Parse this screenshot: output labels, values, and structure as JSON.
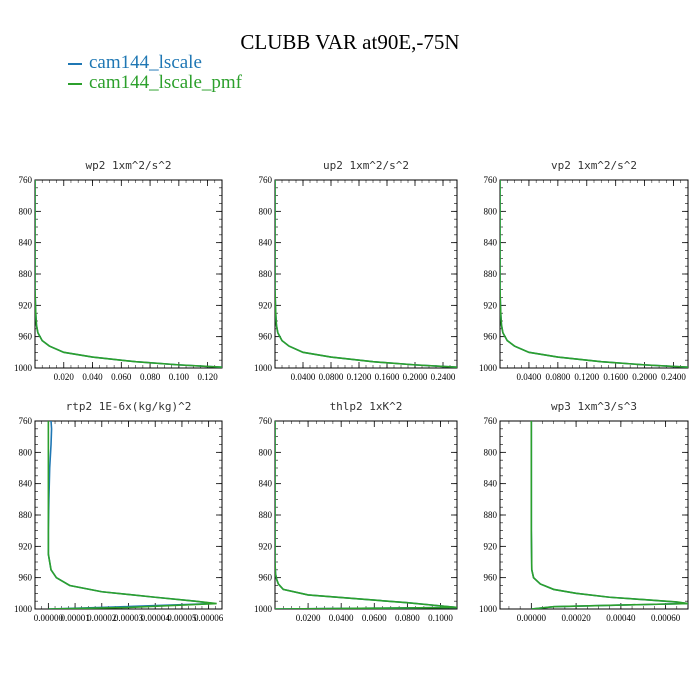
{
  "figure": {
    "title": "CLUBB VAR at90E,-75N"
  },
  "legend": [
    {
      "label": "cam144_lscale",
      "color": "#1f77b4"
    },
    {
      "label": "cam144_lscale_pmf",
      "color": "#2ca02c"
    }
  ],
  "chart_data": [
    {
      "type": "line",
      "title": "wp2  1xm^2/s^2",
      "xlim": [
        0,
        0.13
      ],
      "ylim": [
        760,
        1000
      ],
      "y_inverted": true,
      "xticks": [
        "0.020",
        "0.040",
        "0.060",
        "0.080",
        "0.100",
        "0.120"
      ],
      "xtick_values": [
        0.02,
        0.04,
        0.06,
        0.08,
        0.1,
        0.12
      ],
      "yticks": [
        760,
        800,
        840,
        880,
        920,
        960,
        1000
      ],
      "series": [
        {
          "name": "cam144_lscale",
          "x": [
            0.0,
            0.0,
            0.0005,
            0.001,
            0.002,
            0.005,
            0.01,
            0.02,
            0.04,
            0.07,
            0.1,
            0.13
          ],
          "y": [
            760,
            900,
            930,
            945,
            955,
            965,
            972,
            980,
            986,
            992,
            996,
            999
          ]
        },
        {
          "name": "cam144_lscale_pmf",
          "x": [
            0.0,
            0.0,
            0.0005,
            0.001,
            0.002,
            0.005,
            0.01,
            0.02,
            0.04,
            0.07,
            0.1,
            0.13
          ],
          "y": [
            760,
            900,
            930,
            945,
            955,
            965,
            972,
            980,
            986,
            992,
            996,
            999
          ]
        }
      ]
    },
    {
      "type": "line",
      "title": "up2  1xm^2/s^2",
      "xlim": [
        0,
        0.26
      ],
      "ylim": [
        760,
        1000
      ],
      "y_inverted": true,
      "xticks": [
        "0.0400",
        "0.0800",
        "0.1200",
        "0.1600",
        "0.2000",
        "0.2400"
      ],
      "xtick_values": [
        0.04,
        0.08,
        0.12,
        0.16,
        0.2,
        0.24
      ],
      "yticks": [
        760,
        800,
        840,
        880,
        920,
        960,
        1000
      ],
      "series": [
        {
          "name": "cam144_lscale",
          "x": [
            0.0,
            0.0,
            0.001,
            0.002,
            0.004,
            0.01,
            0.02,
            0.04,
            0.08,
            0.14,
            0.2,
            0.26
          ],
          "y": [
            760,
            900,
            930,
            945,
            955,
            965,
            972,
            980,
            986,
            992,
            996,
            999
          ]
        },
        {
          "name": "cam144_lscale_pmf",
          "x": [
            0.0,
            0.0,
            0.001,
            0.002,
            0.004,
            0.01,
            0.02,
            0.04,
            0.08,
            0.14,
            0.2,
            0.26
          ],
          "y": [
            760,
            900,
            930,
            945,
            955,
            965,
            972,
            980,
            986,
            992,
            996,
            999
          ]
        }
      ]
    },
    {
      "type": "line",
      "title": "vp2  1xm^2/s^2",
      "xlim": [
        0,
        0.26
      ],
      "ylim": [
        760,
        1000
      ],
      "y_inverted": true,
      "xticks": [
        "0.0400",
        "0.0800",
        "0.1200",
        "0.1600",
        "0.2000",
        "0.2400"
      ],
      "xtick_values": [
        0.04,
        0.08,
        0.12,
        0.16,
        0.2,
        0.24
      ],
      "yticks": [
        760,
        800,
        840,
        880,
        920,
        960,
        1000
      ],
      "series": [
        {
          "name": "cam144_lscale",
          "x": [
            0.0,
            0.0,
            0.001,
            0.002,
            0.004,
            0.01,
            0.02,
            0.04,
            0.08,
            0.14,
            0.2,
            0.26
          ],
          "y": [
            760,
            900,
            930,
            945,
            955,
            965,
            972,
            980,
            986,
            992,
            996,
            999
          ]
        },
        {
          "name": "cam144_lscale_pmf",
          "x": [
            0.0,
            0.0,
            0.001,
            0.002,
            0.004,
            0.01,
            0.02,
            0.04,
            0.08,
            0.14,
            0.2,
            0.26
          ],
          "y": [
            760,
            900,
            930,
            945,
            955,
            965,
            972,
            980,
            986,
            992,
            996,
            999
          ]
        }
      ]
    },
    {
      "type": "line",
      "title": "rtp2  1E-6x(kg/kg)^2",
      "xlim": [
        -5e-06,
        6.5e-05
      ],
      "ylim": [
        760,
        1000
      ],
      "y_inverted": true,
      "xticks": [
        "0.00000",
        "0.00001",
        "0.00002",
        "0.00003",
        "0.00004",
        "0.00005",
        "0.00006"
      ],
      "xtick_values": [
        0.0,
        1e-05,
        2e-05,
        3e-05,
        4e-05,
        5e-05,
        6e-05
      ],
      "yticks": [
        760,
        800,
        840,
        880,
        920,
        960,
        1000
      ],
      "series": [
        {
          "name": "cam144_lscale",
          "x": [
            1e-06,
            1.2e-06,
            1e-06,
            5e-07,
            2e-07,
            0.0,
            0.0,
            1e-06,
            3e-06,
            8e-06,
            2e-05,
            4e-05,
            5.5e-05,
            6.2e-05,
            2e-05,
            0.0
          ],
          "y": [
            760,
            770,
            790,
            820,
            860,
            900,
            930,
            950,
            960,
            970,
            978,
            985,
            990,
            993,
            998,
            1000
          ]
        },
        {
          "name": "cam144_lscale_pmf",
          "x": [
            0.0,
            0.0,
            0.0,
            0.0,
            0.0,
            0.0,
            0.0,
            1e-06,
            3e-06,
            8e-06,
            2e-05,
            4e-05,
            5.5e-05,
            6.3e-05,
            3e-05,
            0.0
          ],
          "y": [
            760,
            770,
            790,
            820,
            860,
            900,
            930,
            950,
            960,
            970,
            978,
            985,
            990,
            993,
            998,
            1000
          ]
        }
      ]
    },
    {
      "type": "line",
      "title": "thlp2  1xK^2",
      "xlim": [
        0,
        0.11
      ],
      "ylim": [
        760,
        1000
      ],
      "y_inverted": true,
      "xticks": [
        "0.0200",
        "0.0400",
        "0.0600",
        "0.0800",
        "0.1000"
      ],
      "xtick_values": [
        0.02,
        0.04,
        0.06,
        0.08,
        0.1
      ],
      "yticks": [
        760,
        800,
        840,
        880,
        920,
        960,
        1000
      ],
      "series": [
        {
          "name": "cam144_lscale",
          "x": [
            0.0,
            0.0,
            0.0,
            0.0003,
            0.001,
            0.002,
            0.005,
            0.02,
            0.05,
            0.08,
            0.1,
            0.11,
            0.06,
            0.0
          ],
          "y": [
            760,
            900,
            940,
            955,
            962,
            968,
            975,
            982,
            987,
            992,
            996,
            998,
            999,
            1000
          ]
        },
        {
          "name": "cam144_lscale_pmf",
          "x": [
            0.0,
            0.0,
            0.0,
            0.0003,
            0.001,
            0.002,
            0.005,
            0.02,
            0.05,
            0.08,
            0.1,
            0.11,
            0.06,
            0.0
          ],
          "y": [
            760,
            900,
            940,
            955,
            962,
            968,
            975,
            982,
            987,
            992,
            996,
            998,
            999,
            1000
          ]
        }
      ]
    },
    {
      "type": "line",
      "title": "wp3  1xm^3/s^3",
      "xlim": [
        -0.00014,
        0.0007
      ],
      "ylim": [
        760,
        1000
      ],
      "y_inverted": true,
      "xticks": [
        "0.00000",
        "0.00020",
        "0.00040",
        "0.00060"
      ],
      "xtick_values": [
        0.0,
        0.0002,
        0.0004,
        0.0006
      ],
      "yticks": [
        760,
        800,
        840,
        880,
        920,
        960,
        1000
      ],
      "series": [
        {
          "name": "cam144_lscale",
          "x": [
            0.0,
            0.0,
            2e-06,
            1e-05,
            4e-05,
            0.0001,
            0.0002,
            0.00035,
            0.0005,
            0.00064,
            0.0007,
            0.0004,
            0.0001,
            0.0
          ],
          "y": [
            760,
            900,
            950,
            960,
            968,
            975,
            980,
            985,
            988,
            991,
            993,
            995,
            997,
            1000
          ]
        },
        {
          "name": "cam144_lscale_pmf",
          "x": [
            0.0,
            0.0,
            2e-06,
            1e-05,
            4e-05,
            0.0001,
            0.0002,
            0.00035,
            0.0005,
            0.00065,
            0.0007,
            0.0004,
            0.0001,
            0.0
          ],
          "y": [
            760,
            900,
            950,
            960,
            968,
            975,
            980,
            985,
            988,
            991,
            993,
            995,
            997,
            1000
          ]
        }
      ]
    }
  ]
}
